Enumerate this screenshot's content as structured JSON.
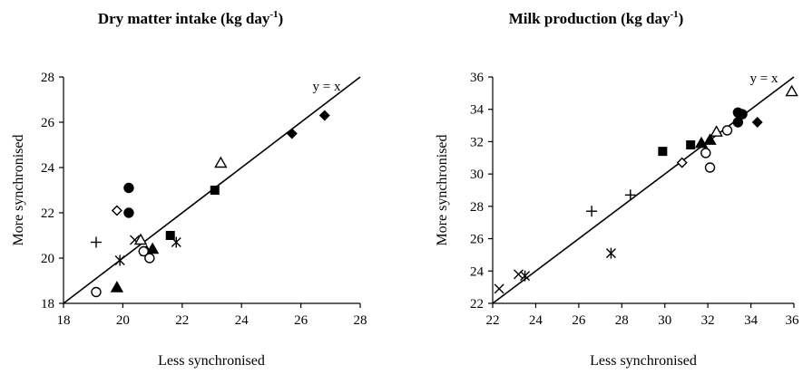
{
  "chart_data": [
    {
      "type": "scatter",
      "title": "Dry matter intake (kg day",
      "title_sup": "-1",
      "title_end": ")",
      "xlabel": "Less synchronised",
      "ylabel": "More synchronised",
      "xlim": [
        18,
        28
      ],
      "ylim": [
        18,
        28
      ],
      "xticks": [
        "18",
        "20",
        "22",
        "24",
        "26",
        "28"
      ],
      "yticks": [
        "18",
        "20",
        "22",
        "24",
        "26",
        "28"
      ],
      "reference_line": {
        "label": "y = x",
        "from": [
          18,
          18
        ],
        "to": [
          28,
          28
        ]
      },
      "grid": false,
      "points": [
        {
          "marker": "diamond-filled",
          "x": 25.7,
          "y": 25.5
        },
        {
          "marker": "diamond-filled",
          "x": 26.8,
          "y": 26.3
        },
        {
          "marker": "triangle-open",
          "x": 23.3,
          "y": 24.2
        },
        {
          "marker": "square-filled",
          "x": 23.1,
          "y": 23.0
        },
        {
          "marker": "circle-filled",
          "x": 20.2,
          "y": 23.1
        },
        {
          "marker": "circle-filled",
          "x": 20.2,
          "y": 22.0
        },
        {
          "marker": "diamond-open",
          "x": 19.8,
          "y": 22.1
        },
        {
          "marker": "square-filled",
          "x": 21.6,
          "y": 21.0
        },
        {
          "marker": "cross-x",
          "x": 20.4,
          "y": 20.8
        },
        {
          "marker": "triangle-open",
          "x": 20.6,
          "y": 20.8
        },
        {
          "marker": "star",
          "x": 21.8,
          "y": 20.7
        },
        {
          "marker": "plus",
          "x": 19.1,
          "y": 20.7
        },
        {
          "marker": "triangle-filled",
          "x": 21.0,
          "y": 20.4
        },
        {
          "marker": "triangle-filled",
          "x": 20.8,
          "y": 20.3
        },
        {
          "marker": "diamond-open",
          "x": 20.7,
          "y": 20.3
        },
        {
          "marker": "circle-open",
          "x": 20.7,
          "y": 20.3
        },
        {
          "marker": "circle-open",
          "x": 20.9,
          "y": 20.0
        },
        {
          "marker": "star",
          "x": 19.9,
          "y": 19.9
        },
        {
          "marker": "triangle-filled",
          "x": 19.8,
          "y": 18.7
        },
        {
          "marker": "circle-open",
          "x": 19.1,
          "y": 18.5
        }
      ]
    },
    {
      "type": "scatter",
      "title": "Milk production (kg day",
      "title_sup": "-1",
      "title_end": ")",
      "xlabel": "Less synchronised",
      "ylabel": "More synchronised",
      "xlim": [
        22,
        36
      ],
      "ylim": [
        22,
        36
      ],
      "xticks": [
        "22",
        "24",
        "26",
        "28",
        "30",
        "32",
        "34",
        "36"
      ],
      "yticks": [
        "22",
        "24",
        "26",
        "28",
        "30",
        "32",
        "34",
        "36"
      ],
      "reference_line": {
        "label": "y = x",
        "from": [
          22,
          22
        ],
        "to": [
          36,
          36
        ]
      },
      "grid": false,
      "points": [
        {
          "marker": "triangle-open",
          "x": 35.9,
          "y": 35.1
        },
        {
          "marker": "circle-filled",
          "x": 33.4,
          "y": 33.8
        },
        {
          "marker": "circle-filled",
          "x": 33.6,
          "y": 33.7
        },
        {
          "marker": "circle-filled",
          "x": 33.4,
          "y": 33.2
        },
        {
          "marker": "diamond-filled",
          "x": 34.3,
          "y": 33.2
        },
        {
          "marker": "circle-open",
          "x": 32.9,
          "y": 32.7
        },
        {
          "marker": "triangle-open",
          "x": 32.4,
          "y": 32.6
        },
        {
          "marker": "triangle-filled",
          "x": 32.1,
          "y": 32.1
        },
        {
          "marker": "triangle-filled",
          "x": 31.7,
          "y": 31.9
        },
        {
          "marker": "square-filled",
          "x": 31.2,
          "y": 31.8
        },
        {
          "marker": "square-filled",
          "x": 29.9,
          "y": 31.4
        },
        {
          "marker": "circle-open",
          "x": 31.9,
          "y": 31.3
        },
        {
          "marker": "diamond-open",
          "x": 30.8,
          "y": 30.7
        },
        {
          "marker": "circle-open",
          "x": 32.1,
          "y": 30.4
        },
        {
          "marker": "plus",
          "x": 28.4,
          "y": 28.7
        },
        {
          "marker": "plus",
          "x": 26.6,
          "y": 27.7
        },
        {
          "marker": "star",
          "x": 27.5,
          "y": 25.1
        },
        {
          "marker": "cross-x",
          "x": 23.2,
          "y": 23.8
        },
        {
          "marker": "star",
          "x": 23.5,
          "y": 23.7
        },
        {
          "marker": "cross-x",
          "x": 22.3,
          "y": 22.9
        }
      ]
    }
  ]
}
